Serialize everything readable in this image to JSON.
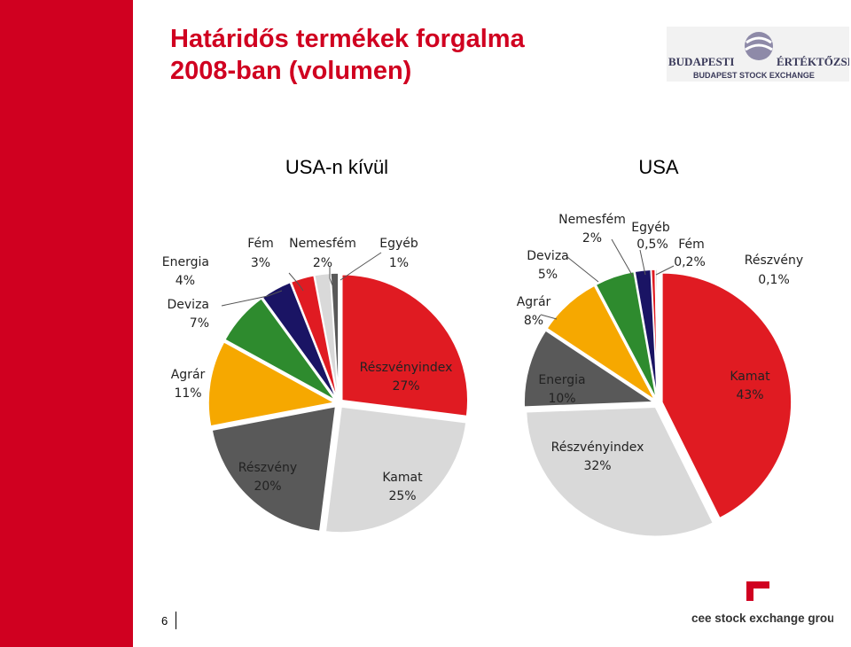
{
  "slide": {
    "title_line1": "Határidős termékek forgalma",
    "title_line2": "2008-ban (volumen)",
    "page_number": "6",
    "logo_bse_line1_left": "BUDAPESTI",
    "logo_bse_line1_right": "ÉRTÉKTŐZSDE",
    "logo_bse_line2": "BUDAPEST STOCK EXCHANGE",
    "logo_cee": "cee stock exchange group",
    "accent_red": "#d00020"
  },
  "chart_data": [
    {
      "type": "pie",
      "title": "USA-n kívül",
      "slices": [
        {
          "name": "Részvényindex",
          "value": 27,
          "label": "27%",
          "color": "#e01b22"
        },
        {
          "name": "Kamat",
          "value": 25,
          "label": "25%",
          "color": "#d9d9d9"
        },
        {
          "name": "Részvény",
          "value": 20,
          "label": "20%",
          "color": "#595959"
        },
        {
          "name": "Agrár",
          "value": 11,
          "label": "11%",
          "color": "#f6a800"
        },
        {
          "name": "Deviza",
          "value": 7,
          "label": "7%",
          "color": "#2e8b2e"
        },
        {
          "name": "Energia",
          "value": 4,
          "label": "4%",
          "color": "#1a1464"
        },
        {
          "name": "Fém",
          "value": 3,
          "label": "3%",
          "color": "#e01b22"
        },
        {
          "name": "Nemesfém",
          "value": 2,
          "label": "2%",
          "color": "#d9d9d9"
        },
        {
          "name": "Egyéb",
          "value": 1,
          "label": "1%",
          "color": "#595959"
        }
      ]
    },
    {
      "type": "pie",
      "title": "USA",
      "slices": [
        {
          "name": "Kamat",
          "value": 43,
          "label": "43%",
          "color": "#e01b22"
        },
        {
          "name": "Részvényindex",
          "value": 32,
          "label": "32%",
          "color": "#d9d9d9"
        },
        {
          "name": "Energia",
          "value": 10,
          "label": "10%",
          "color": "#595959"
        },
        {
          "name": "Agrár",
          "value": 8,
          "label": "8%",
          "color": "#f6a800"
        },
        {
          "name": "Deviza",
          "value": 5,
          "label": "5%",
          "color": "#2e8b2e"
        },
        {
          "name": "Nemesfém",
          "value": 2,
          "label": "2%",
          "color": "#1a1464"
        },
        {
          "name": "Egyéb",
          "value": 0.5,
          "label": "0,5%",
          "color": "#e01b22"
        },
        {
          "name": "Fém",
          "value": 0.2,
          "label": "0,2%",
          "color": "#595959"
        },
        {
          "name": "Részvény",
          "value": 0.1,
          "label": "0,1%",
          "color": "#d9d9d9"
        }
      ]
    }
  ]
}
